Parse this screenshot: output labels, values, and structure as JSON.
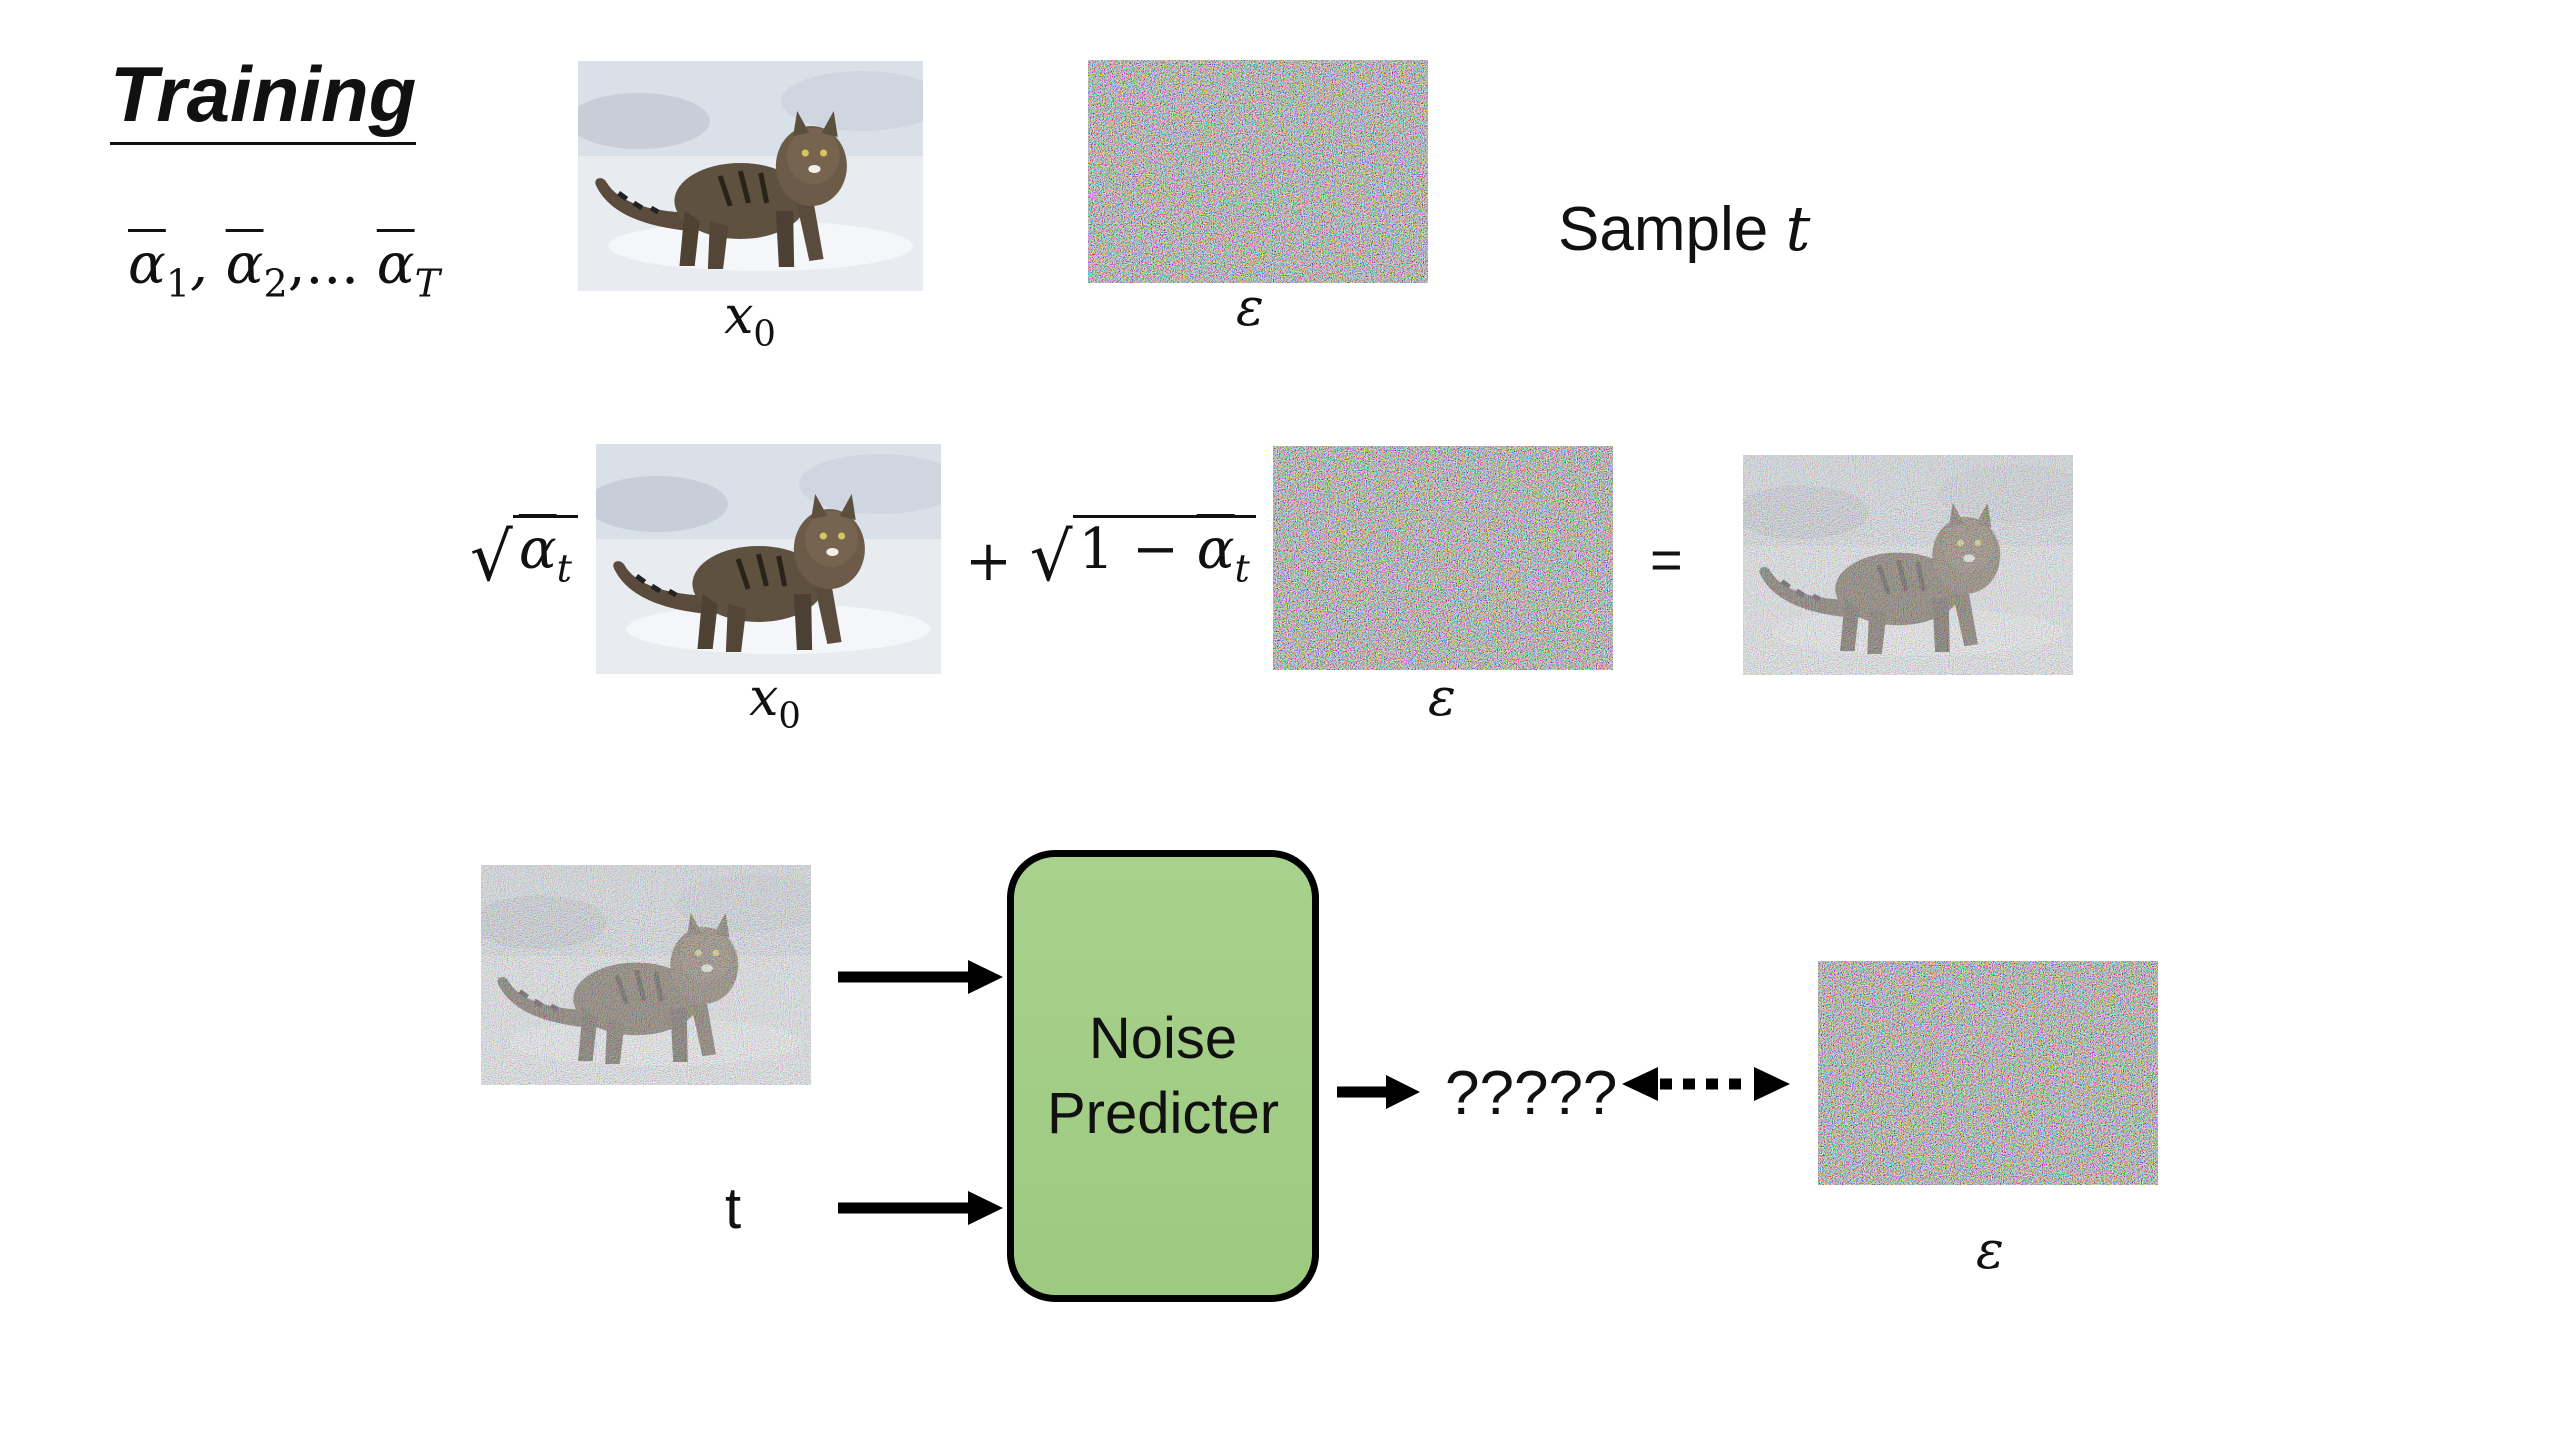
{
  "title": "Training",
  "schedule": {
    "a1": "1",
    "a2": "2",
    "dots": ",...",
    "aT": "T"
  },
  "row1": {
    "x0_label": "x",
    "x0_sub": "0",
    "eps_label": "ε",
    "sample_text": "Sample",
    "sample_var": "t"
  },
  "row2": {
    "plus": "+",
    "one_minus": "1 −",
    "equals": "=",
    "x0_label": "x",
    "x0_sub": "0",
    "eps_label": "ε",
    "t_sub": "t"
  },
  "row3": {
    "t_input": "t",
    "predictor_line1": "Noise",
    "predictor_line2": "Predicter",
    "output": "?????",
    "eps_label": "ε"
  },
  "colors": {
    "predictor_fill": "#a9d18e",
    "border": "#000000"
  }
}
